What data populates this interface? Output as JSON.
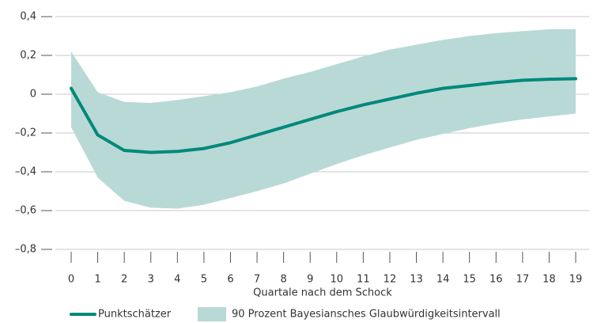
{
  "chart_data": {
    "type": "line",
    "x_label": "Quartale nach dem Schock",
    "x": [
      0,
      1,
      2,
      3,
      4,
      5,
      6,
      7,
      8,
      9,
      10,
      11,
      12,
      13,
      14,
      15,
      16,
      17,
      18,
      19
    ],
    "xlim": [
      0,
      19
    ],
    "xticks": [
      0,
      1,
      2,
      3,
      4,
      5,
      6,
      7,
      8,
      9,
      10,
      11,
      12,
      13,
      14,
      15,
      16,
      17,
      18,
      19
    ],
    "ylim": [
      -0.8,
      0.4
    ],
    "yticks": [
      {
        "value": -0.8,
        "label": "–0,8"
      },
      {
        "value": -0.6,
        "label": "–0,6"
      },
      {
        "value": -0.4,
        "label": "–0,4"
      },
      {
        "value": -0.2,
        "label": "–0,2"
      },
      0,
      {
        "value": 0.2,
        "label": "0,2"
      },
      {
        "value": 0.4,
        "label": "0,4"
      }
    ],
    "grid": true,
    "series": [
      {
        "name": "Punktschätzer",
        "color": "#00897b",
        "values": [
          0.03,
          -0.21,
          -0.29,
          -0.3,
          -0.295,
          -0.28,
          -0.25,
          -0.21,
          -0.17,
          -0.13,
          -0.09,
          -0.055,
          -0.025,
          0.005,
          0.03,
          0.045,
          0.06,
          0.072,
          0.077,
          0.08
        ]
      },
      {
        "name": "90 Prozent Bayesiansches Glaubwürdigkeitsintervall",
        "color": "#b9d9d6",
        "upper": [
          0.22,
          0.01,
          -0.04,
          -0.045,
          -0.03,
          -0.01,
          0.01,
          0.04,
          0.08,
          0.115,
          0.155,
          0.195,
          0.23,
          0.255,
          0.28,
          0.3,
          0.315,
          0.325,
          0.335,
          0.335
        ],
        "lower": [
          -0.17,
          -0.43,
          -0.55,
          -0.585,
          -0.59,
          -0.57,
          -0.535,
          -0.5,
          -0.46,
          -0.41,
          -0.36,
          -0.315,
          -0.275,
          -0.235,
          -0.205,
          -0.175,
          -0.15,
          -0.13,
          -0.115,
          -0.1
        ]
      }
    ]
  }
}
